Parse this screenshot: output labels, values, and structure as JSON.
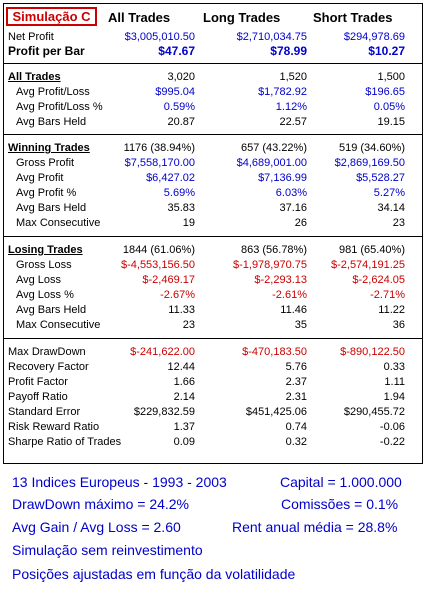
{
  "header": {
    "badge": "Simulação C",
    "col_all": "All Trades",
    "col_long": "Long Trades",
    "col_short": "Short Trades"
  },
  "rows": [
    {
      "label": "Net Profit",
      "all": "$3,005,010.50",
      "long": "$2,710,034.75",
      "short": "$294,978.69"
    },
    {
      "label": "Profit per Bar",
      "all": "$47.67",
      "long": "$78.99",
      "short": "$10.27"
    },
    {
      "label": "All Trades",
      "all": "3,020",
      "long": "1,520",
      "short": "1,500"
    },
    {
      "label": "Avg Profit/Loss",
      "all": "$995.04",
      "long": "$1,782.92",
      "short": "$196.65"
    },
    {
      "label": "Avg Profit/Loss %",
      "all": "0.59%",
      "long": "1.12%",
      "short": "0.05%"
    },
    {
      "label": "Avg Bars Held",
      "all": "20.87",
      "long": "22.57",
      "short": "19.15"
    },
    {
      "label": "Winning Trades",
      "all": "1176 (38.94%)",
      "long": "657 (43.22%)",
      "short": "519 (34.60%)"
    },
    {
      "label": "Gross Profit",
      "all": "$7,558,170.00",
      "long": "$4,689,001.00",
      "short": "$2,869,169.50"
    },
    {
      "label": "Avg Profit",
      "all": "$6,427.02",
      "long": "$7,136.99",
      "short": "$5,528.27"
    },
    {
      "label": "Avg Profit %",
      "all": "5.69%",
      "long": "6.03%",
      "short": "5.27%"
    },
    {
      "label": "Avg Bars Held",
      "all": "35.83",
      "long": "37.16",
      "short": "34.14"
    },
    {
      "label": "Max Consecutive",
      "all": "19",
      "long": "26",
      "short": "23"
    },
    {
      "label": "Losing Trades",
      "all": "1844 (61.06%)",
      "long": "863 (56.78%)",
      "short": "981 (65.40%)"
    },
    {
      "label": "Gross Loss",
      "all": "$-4,553,156.50",
      "long": "$-1,978,970.75",
      "short": "$-2,574,191.25"
    },
    {
      "label": "Avg Loss",
      "all": "$-2,469.17",
      "long": "$-2,293.13",
      "short": "$-2,624.05"
    },
    {
      "label": "Avg Loss %",
      "all": "-2.67%",
      "long": "-2.61%",
      "short": "-2.71%"
    },
    {
      "label": "Avg Bars Held",
      "all": "11.33",
      "long": "11.46",
      "short": "11.22"
    },
    {
      "label": "Max Consecutive",
      "all": "23",
      "long": "35",
      "short": "36"
    },
    {
      "label": "Max DrawDown",
      "all": "$-241,622.00",
      "long": "$-470,183.50",
      "short": "$-890,122.50"
    },
    {
      "label": "Recovery Factor",
      "all": "12.44",
      "long": "5.76",
      "short": "0.33"
    },
    {
      "label": "Profit Factor",
      "all": "1.66",
      "long": "2.37",
      "short": "1.11"
    },
    {
      "label": "Payoff Ratio",
      "all": "2.14",
      "long": "2.31",
      "short": "1.94"
    },
    {
      "label": "Standard Error",
      "all": "$229,832.59",
      "long": "$451,425.06",
      "short": "$290,455.72"
    },
    {
      "label": "Risk Reward Ratio",
      "all": "1.37",
      "long": "0.74",
      "short": "-0.06"
    },
    {
      "label": "Sharpe Ratio of Trades",
      "all": "0.09",
      "long": "0.32",
      "short": "-0.22"
    }
  ],
  "summary": {
    "line1_left": "13 Indices Europeus - 1993 - 2003",
    "line1_right": "Capital = 1.000.000",
    "line2_left": "DrawDown máximo = 24.2%",
    "line2_right": "Comissões = 0.1%",
    "line3_left": "Avg Gain / Avg Loss = 2.60",
    "line3_right": "Rent anual média = 28.8%",
    "line4": "Simulação sem reinvestimento",
    "line5": "Posições ajustadas em função da volatilidade"
  },
  "colors": {
    "value_blue": "#0000cc",
    "negative_red": "#cc0000",
    "badge_red": "#cc0000"
  }
}
